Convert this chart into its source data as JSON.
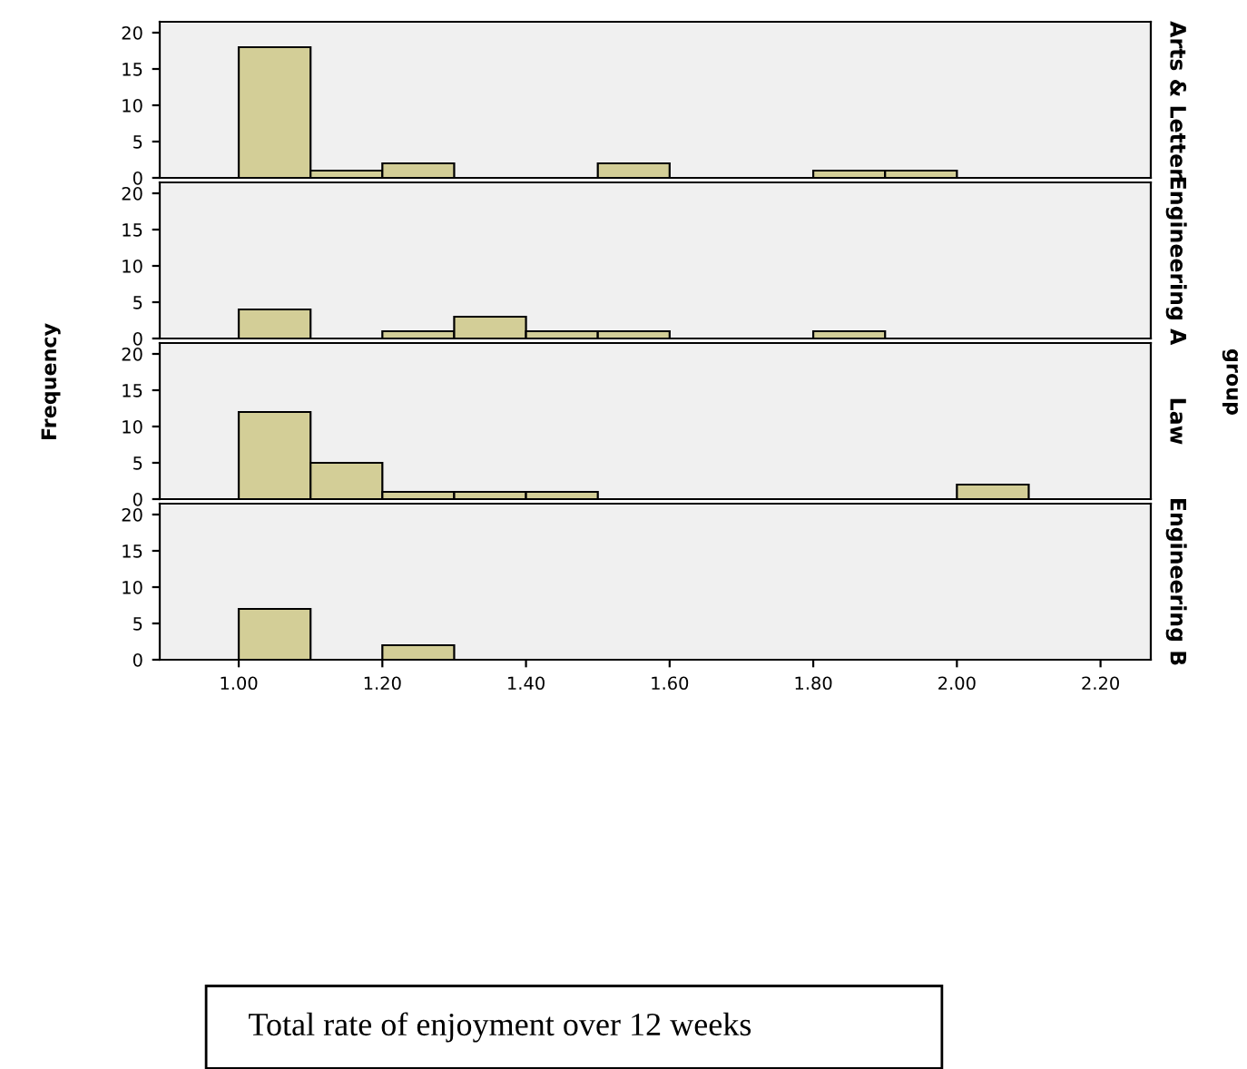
{
  "chart_data": [
    {
      "type": "histogram",
      "y2label": "Arts & Letter",
      "bins": [
        1.0,
        1.1,
        1.2,
        1.3,
        1.4,
        1.5,
        1.6,
        1.7,
        1.8,
        1.9,
        2.0,
        2.1
      ],
      "values": [
        18,
        1,
        2,
        0,
        0,
        2,
        0,
        0,
        1,
        1,
        0
      ],
      "color": "#d3ce97",
      "xlim": [
        0.89,
        2.27
      ],
      "ylim": [
        0,
        21.5
      ],
      "yticks": [
        0,
        5,
        10,
        15,
        20
      ],
      "tick_labels": "y",
      "grid": false
    },
    {
      "type": "histogram",
      "y2label": "Engineering A",
      "bins": [
        1.0,
        1.1,
        1.2,
        1.3,
        1.4,
        1.5,
        1.6,
        1.7,
        1.8,
        1.9,
        2.0,
        2.1
      ],
      "values": [
        4,
        0,
        1,
        3,
        1,
        1,
        0,
        0,
        1,
        0,
        0
      ],
      "color": "#d3ce97",
      "xlim": [
        0.89,
        2.27
      ],
      "ylim": [
        0,
        21.5
      ],
      "yticks": [
        0,
        5,
        10,
        15,
        20
      ],
      "tick_labels": "y",
      "grid": false
    },
    {
      "type": "histogram",
      "y2label": "Law",
      "ylabel": "Frequency",
      "annotations": [
        "group"
      ],
      "bins": [
        1.0,
        1.1,
        1.2,
        1.3,
        1.4,
        1.5,
        1.6,
        1.7,
        1.8,
        1.9,
        2.0,
        2.1
      ],
      "values": [
        12,
        5,
        1,
        1,
        1,
        0,
        0,
        0,
        0,
        0,
        2
      ],
      "color": "#d3ce97",
      "xlim": [
        0.89,
        2.27
      ],
      "ylim": [
        0,
        21.5
      ],
      "yticks": [
        0,
        5,
        10,
        15,
        20
      ],
      "tick_labels": "y",
      "grid": false
    },
    {
      "type": "histogram",
      "y2label": "Engineering B",
      "xlabel": "Total rate of enjoyment over 12 weeks",
      "bins": [
        1.0,
        1.1,
        1.2,
        1.3,
        1.4,
        1.5,
        1.6,
        1.7,
        1.8,
        1.9,
        2.0,
        2.1
      ],
      "values": [
        7,
        0,
        2,
        0,
        0,
        0,
        0,
        0,
        0,
        0,
        0
      ],
      "color": "#d3ce97",
      "xlim": [
        0.89,
        2.27
      ],
      "ylim": [
        0,
        21.5
      ],
      "xticks": [
        {
          "value": 1.0,
          "label": "1.00"
        },
        {
          "value": 1.2,
          "label": "1.20"
        },
        {
          "value": 1.4,
          "label": "1.40"
        },
        {
          "value": 1.6,
          "label": "1.60"
        },
        {
          "value": 1.8,
          "label": "1.80"
        },
        {
          "value": 2.0,
          "label": "2.00"
        },
        {
          "value": 2.2,
          "label": "2.20"
        }
      ],
      "yticks": [
        0,
        5,
        10,
        15,
        20
      ],
      "grid": false
    }
  ]
}
